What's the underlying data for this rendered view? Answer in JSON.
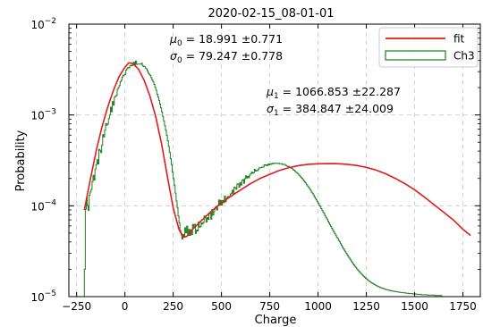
{
  "chart_data": {
    "type": "line",
    "title": "2020-02-15_08-01-01",
    "xlabel": "Charge",
    "ylabel": "Probability",
    "xlim": [
      -290,
      1840
    ],
    "ylim_exponents": [
      -5,
      -2
    ],
    "yscale": "log",
    "grid": true,
    "x_ticks": [
      -250,
      0,
      250,
      500,
      750,
      1000,
      1250,
      1500,
      1750
    ],
    "x_tick_labels": [
      "−250",
      "0",
      "250",
      "500",
      "750",
      "1000",
      "1250",
      "1500",
      "1750"
    ],
    "y_ticks": [
      1e-05,
      0.0001,
      0.001,
      0.01
    ],
    "y_tick_labels": [
      {
        "base": "10",
        "exp": "−5"
      },
      {
        "base": "10",
        "exp": "−4"
      },
      {
        "base": "10",
        "exp": "−3"
      },
      {
        "base": "10",
        "exp": "−2"
      }
    ],
    "legend": {
      "position": "upper-right",
      "entries": [
        {
          "label": "fit",
          "color": "#e41a1c",
          "style": "line"
        },
        {
          "label": "Ch3",
          "color": "#1a7f1a",
          "style": "patch"
        }
      ]
    },
    "annotations": [
      {
        "position": "upper-left",
        "lines": [
          {
            "sym": "μ",
            "sub": "0",
            "text": " = 18.991 ±0.771"
          },
          {
            "sym": "σ",
            "sub": "0",
            "text": " = 79.247 ±0.778"
          }
        ]
      },
      {
        "position": "upper-middle-right",
        "lines": [
          {
            "sym": "μ",
            "sub": "1",
            "text": " = 1066.853 ±22.287"
          },
          {
            "sym": "σ",
            "sub": "1",
            "text": " = 384.847 ±24.009"
          }
        ]
      }
    ],
    "series": [
      {
        "name": "fit",
        "color": "#e41a1c",
        "points": [
          [
            -210,
            9e-05
          ],
          [
            -180,
            0.00019
          ],
          [
            -150,
            0.00039
          ],
          [
            -120,
            0.00072
          ],
          [
            -90,
            0.0012
          ],
          [
            -60,
            0.00185
          ],
          [
            -30,
            0.00265
          ],
          [
            0,
            0.00335
          ],
          [
            20,
            0.00375
          ],
          [
            40,
            0.0037
          ],
          [
            70,
            0.0032
          ],
          [
            100,
            0.0024
          ],
          [
            130,
            0.0016
          ],
          [
            160,
            0.00095
          ],
          [
            190,
            0.00048
          ],
          [
            220,
            0.00021
          ],
          [
            250,
            9.5e-05
          ],
          [
            280,
            5.5e-05
          ],
          [
            300,
            4.5e-05
          ],
          [
            320,
            4.6e-05
          ],
          [
            350,
            5.5e-05
          ],
          [
            400,
            7e-05
          ],
          [
            450,
            8.8e-05
          ],
          [
            500,
            0.000108
          ],
          [
            550,
            0.000128
          ],
          [
            600,
            0.00015
          ],
          [
            650,
            0.000175
          ],
          [
            700,
            0.0002
          ],
          [
            750,
            0.000222
          ],
          [
            800,
            0.000245
          ],
          [
            850,
            0.000263
          ],
          [
            900,
            0.000277
          ],
          [
            950,
            0.000286
          ],
          [
            1000,
            0.00029
          ],
          [
            1066,
            0.000292
          ],
          [
            1100,
            0.000291
          ],
          [
            1150,
            0.000286
          ],
          [
            1200,
            0.000278
          ],
          [
            1250,
            0.000265
          ],
          [
            1300,
            0.000247
          ],
          [
            1350,
            0.000225
          ],
          [
            1400,
            0.0002
          ],
          [
            1450,
            0.000175
          ],
          [
            1500,
            0.00015
          ],
          [
            1550,
            0.000125
          ],
          [
            1600,
            0.000103
          ],
          [
            1650,
            8.5e-05
          ],
          [
            1700,
            7e-05
          ],
          [
            1750,
            5.5e-05
          ],
          [
            1790,
            4.7e-05
          ]
        ]
      },
      {
        "name": "Ch3",
        "color": "#1a7f1a",
        "style": "step",
        "bin_width": 5,
        "bin_start": -210,
        "values": [
          2e-05,
          9.18e-05,
          0.0001218,
          0.0001007,
          8.92e-05,
          0.0001307,
          0.0001424,
          0.0001513,
          0.0001854,
          0.0002167,
          0.0001919,
          0.0002539,
          0.0002837,
          0.0003216,
          0.0002888,
          0.0004168,
          0.0004079,
          0.0003854,
          0.000464,
          0.0006078,
          0.0005726,
          0.0006809,
          0.0008051,
          0.0007711,
          0.0007961,
          0.0009123,
          0.000999,
          0.0012174,
          0.0010828,
          0.0014053,
          0.0012893,
          0.0015719,
          0.0016074,
          0.0016436,
          0.0019161,
          0.0020055,
          0.0021099,
          0.0023235,
          0.002412,
          0.0026159,
          0.0027315,
          0.0027582,
          0.0027992,
          0.0031186,
          0.0032281,
          0.0033211,
          0.0032925,
          0.0034569,
          0.0035269,
          0.0034899,
          0.0036315,
          0.0038032,
          0.0035658,
          0.0039148,
          0.0036106,
          0.0036281,
          0.0036307,
          0.0036313,
          0.0036262,
          0.003716,
          0.0035095,
          0.0034093,
          0.0034209,
          0.0032778,
          0.0032235,
          0.0030733,
          0.0028844,
          0.0028018,
          0.0027223,
          0.0025657,
          0.0024307,
          0.0023144,
          0.0021739,
          0.0020164,
          0.0018718,
          0.0016953,
          0.0015726,
          0.0014462,
          0.0013173,
          0.0011947,
          0.0010806,
          0.0009638,
          0.0008579,
          0.0007613,
          0.0006812,
          0.0005964,
          0.0005211,
          0.0004513,
          0.0003867,
          0.0003303,
          0.0002838,
          0.0002341,
          0.0001995,
          0.0001688,
          0.0001379,
          0.0001133,
          9.58e-05,
          7.75e-05,
          6.48e-05,
          5.31e-05,
          4.96e-05,
          4.31e-05,
          4.82e-05,
          4.59e-05,
          5.73e-05,
          5.04e-05,
          5.96e-05,
          4.7e-05,
          5.49e-05,
          4.72e-05,
          5.44e-05,
          4.81e-05,
          6.25e-05,
          5.73e-05,
          6.24e-05,
          4.97e-05,
          5.4e-05,
          5.28e-05,
          6.64e-05,
          5.81e-05,
          5.92e-05,
          6.49e-05,
          6.29e-05,
          6.56e-05,
          7.74e-05,
          7.36e-05,
          6.6e-05,
          7.4e-05,
          7.07e-05,
          8.18e-05,
          8.28e-05,
          7.11e-05,
          9.1e-05,
          7.89e-05,
          8.62e-05,
          9.33e-05,
          9.75e-05,
          8.96e-05,
          0.0001001,
          0.0001157,
          0.0001012,
          0.0001149,
          0.0001018,
          0.0001146,
          0.0001081,
          0.000128,
          0.0001107,
          0.0001208,
          0.0001262,
          0.0001248,
          0.0001268,
          0.0001349,
          0.0001377,
          0.0001487,
          0.0001349,
          0.0001604,
          0.0001579,
          0.0001517,
          0.0001736,
          0.0001744,
          0.0001601,
          0.0001799,
          0.0001687,
          0.0001906,
          0.0001944,
          0.0001768,
          0.0001986,
          0.0002137,
          0.0002024,
          0.0002107,
          0.0002036,
          0.0002179,
          0.0002249,
          0.0002351,
          0.0002281,
          0.0002307,
          0.0002518,
          0.0002412,
          0.0002448,
          0.000244,
          0.0002537,
          0.0002616,
          0.0002631,
          0.000263,
          0.0002676,
          0.0002669,
          0.000283,
          0.0002793,
          0.0002822,
          0.0002772,
          0.0002871,
          0.0002812,
          0.0002886,
          0.0002863,
          0.0002933,
          0.0002894,
          0.0002943,
          0.0002942,
          0.0002926,
          0.0002938,
          0.0002921,
          0.0002929,
          0.0002896,
          0.0002902,
          0.0002911,
          0.0002846,
          0.0002864,
          0.0002855,
          0.0002788,
          0.0002772,
          0.0002708,
          0.0002719,
          0.0002659,
          0.0002651,
          0.0002596,
          0.0002567,
          0.0002492,
          0.0002465,
          0.0002385,
          0.000235,
          0.0002283,
          0.0002256,
          0.0002173,
          0.0002127,
          0.0002059,
          0.0002003,
          0.0001947,
          0.0001883,
          0.0001825,
          0.0001778,
          0.00017,
          0.0001649,
          0.0001593,
          0.0001542,
          0.0001479,
          0.0001413,
          0.000137,
          0.0001318,
          0.0001254,
          0.0001203,
          0.0001162,
          0.0001109,
          0.0001065,
          0.0001017,
          9.79e-05,
          9.3e-05,
          8.9e-05,
          8.52e-05,
          8.16e-05,
          7.75e-05,
          7.41e-05,
          7.14e-05,
          6.78e-05,
          6.48e-05,
          6.18e-05,
          5.93e-05,
          5.66e-05,
          5.41e-05,
          5.15e-05,
          4.96e-05,
          4.74e-05,
          4.52e-05,
          4.38e-05,
          4.17e-05,
          4.01e-05,
          3.83e-05,
          3.67e-05,
          3.51e-05,
          3.36e-05,
          3.24e-05,
          3.11e-05,
          2.99e-05,
          2.87e-05,
          2.76e-05,
          2.66e-05,
          2.57e-05,
          2.46e-05,
          2.38e-05,
          2.3e-05,
          2.22e-05,
          2.15e-05,
          2.08e-05,
          2.02e-05,
          1.96e-05,
          1.9e-05,
          1.85e-05,
          1.8e-05,
          1.76e-05,
          1.71e-05,
          1.67e-05,
          1.63e-05,
          1.59e-05,
          1.56e-05,
          1.53e-05,
          1.5e-05,
          1.47e-05,
          1.45e-05,
          1.42e-05,
          1.4e-05,
          1.38e-05,
          1.36e-05,
          1.34e-05,
          1.32e-05,
          1.31e-05,
          1.29e-05,
          1.28e-05,
          1.26e-05,
          1.25e-05,
          1.24e-05,
          1.23e-05,
          1.22e-05,
          1.21e-05,
          1.2e-05,
          1.19e-05,
          1.19e-05,
          1.18e-05,
          1.17e-05,
          1.16e-05,
          1.16e-05,
          1.15e-05,
          1.15e-05,
          1.14e-05,
          1.14e-05,
          1.13e-05,
          1.13e-05,
          1.12e-05,
          1.12e-05,
          1.11e-05,
          1.11e-05,
          1.11e-05,
          1.1e-05,
          1.1e-05,
          1.1e-05,
          1.09e-05,
          1.09e-05,
          1.09e-05,
          1.08e-05,
          1.08e-05,
          1.08e-05,
          1.08e-05,
          1.07e-05,
          1.07e-05,
          1.07e-05,
          1.07e-05,
          1.06e-05,
          1.06e-05,
          1.06e-05,
          1.06e-05,
          1.06e-05,
          1.05e-05,
          1.05e-05,
          1.05e-05,
          1.05e-05,
          1.05e-05,
          1.05e-05,
          1.04e-05,
          1.04e-05,
          1.04e-05,
          1.04e-05,
          1.04e-05,
          1.04e-05,
          1.04e-05,
          1.04e-05,
          1.03e-05,
          1.03e-05,
          1.03e-05,
          1.03e-05,
          1.03e-05,
          1.03e-05,
          1.03e-05
        ]
      }
    ]
  }
}
